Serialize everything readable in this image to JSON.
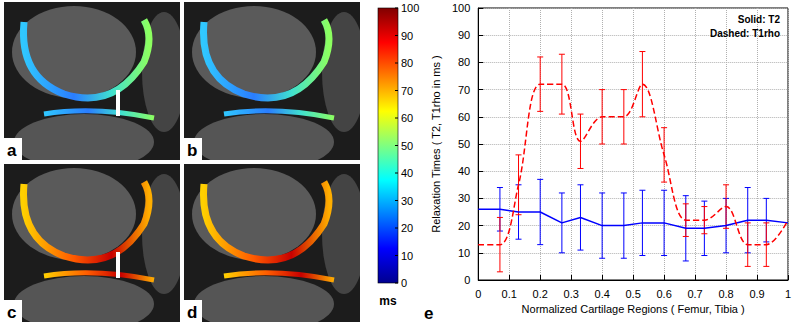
{
  "chart_data": {
    "type": "line",
    "x_label": "Normalized Cartilage Regions ( Femur, Tibia )",
    "y_label": "Relaxation Times ( T2, T1rho in ms )",
    "panel_label": "e",
    "annotations": [
      "Solid: T2",
      "Dashed: T1rho"
    ],
    "x": [
      0,
      0.07,
      0.13,
      0.2,
      0.27,
      0.33,
      0.4,
      0.47,
      0.53,
      0.6,
      0.67,
      0.73,
      0.8,
      0.87,
      0.93,
      1.0
    ],
    "xlim": [
      0,
      1
    ],
    "xticks": [
      0,
      0.1,
      0.2,
      0.3,
      0.4,
      0.5,
      0.6,
      0.7,
      0.8,
      0.9,
      1
    ],
    "ylim": [
      0,
      100
    ],
    "yticks": [
      0,
      10,
      20,
      30,
      40,
      50,
      60,
      70,
      80,
      90,
      100
    ],
    "grid": true,
    "series": [
      {
        "name": "T2",
        "color": "#0000ff",
        "line_style": "solid",
        "values": [
          26,
          26,
          25,
          25,
          21,
          23,
          20,
          20,
          21,
          21,
          19,
          19,
          20,
          22,
          22,
          21
        ],
        "errors": [
          null,
          8,
          10,
          12,
          11,
          12,
          12,
          12,
          12,
          12,
          12,
          10,
          10,
          12,
          8,
          null
        ]
      },
      {
        "name": "T1rho",
        "color": "#ff0000",
        "line_style": "dashed",
        "values": [
          13,
          13,
          35,
          72,
          72,
          51,
          60,
          60,
          72,
          46,
          22,
          22,
          27,
          13,
          13,
          22
        ],
        "errors": [
          null,
          10,
          11,
          10,
          11,
          10,
          10,
          10,
          12,
          10,
          6,
          5,
          8,
          8,
          8,
          null
        ]
      }
    ]
  },
  "images": {
    "panels": [
      {
        "label": "a"
      },
      {
        "label": "b"
      },
      {
        "label": "c"
      },
      {
        "label": "d"
      }
    ],
    "colorbar": {
      "range": [
        0,
        100
      ],
      "ticks": [
        0,
        10,
        20,
        30,
        40,
        50,
        60,
        70,
        80,
        90,
        100
      ],
      "label": "ms"
    }
  }
}
